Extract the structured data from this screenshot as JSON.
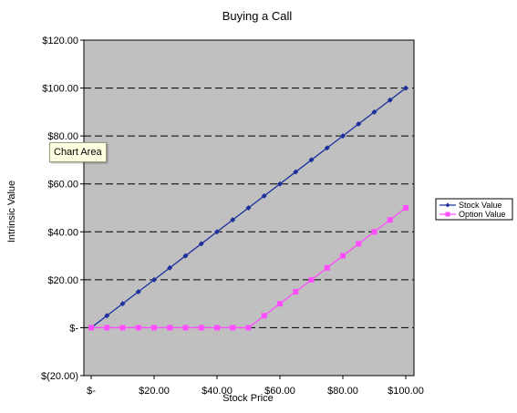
{
  "chart_data": {
    "type": "line",
    "title": "Buying a Call",
    "xlabel": "Stock Price",
    "ylabel": "Intrinsic Value",
    "x": [
      0,
      5,
      10,
      15,
      20,
      25,
      30,
      35,
      40,
      45,
      50,
      55,
      60,
      65,
      70,
      75,
      80,
      85,
      90,
      95,
      100
    ],
    "series": [
      {
        "name": "Stock Value",
        "color": "#1c2f9c",
        "marker": "diamond",
        "values": [
          0,
          5,
          10,
          15,
          20,
          25,
          30,
          35,
          40,
          45,
          50,
          55,
          60,
          65,
          70,
          75,
          80,
          85,
          90,
          95,
          100
        ]
      },
      {
        "name": "Option Value",
        "color": "#ff4dff",
        "marker": "square",
        "values": [
          0,
          0,
          0,
          0,
          0,
          0,
          0,
          0,
          0,
          0,
          0,
          5,
          10,
          15,
          20,
          25,
          30,
          35,
          40,
          45,
          50
        ]
      }
    ],
    "xlim": [
      0,
      100
    ],
    "ylim": [
      -20,
      120
    ],
    "x_ticks": [
      0,
      20,
      40,
      60,
      80,
      100
    ],
    "x_tick_labels": [
      "$-",
      "$20.00",
      "$40.00",
      "$60.00",
      "$80.00",
      "$100.00"
    ],
    "y_ticks": [
      -20,
      0,
      20,
      40,
      60,
      80,
      100,
      120
    ],
    "y_tick_labels": [
      "$(20.00)",
      "$-",
      "$20.00",
      "$40.00",
      "$60.00",
      "$80.00",
      "$100.00",
      "$120.00"
    ],
    "grid": "horizontal dashed",
    "legend_position": "right",
    "plot_background": "#c0c0c0",
    "tooltip": "Chart Area"
  }
}
